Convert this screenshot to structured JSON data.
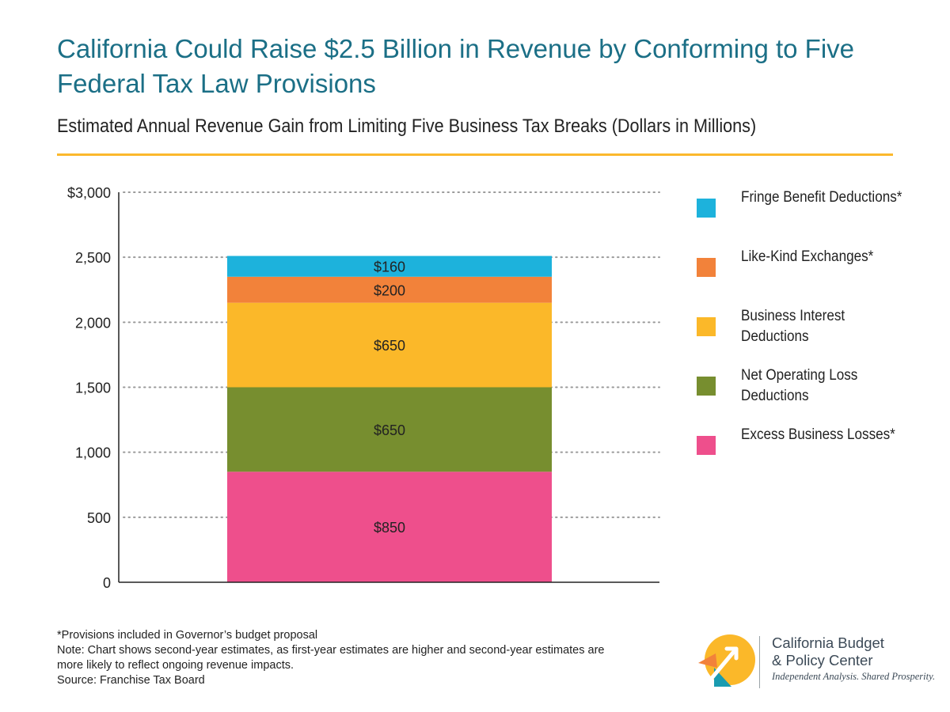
{
  "header": {
    "title": "California Could Raise $2.5 Billion in Revenue by Conforming to Five Federal Tax Law Provisions",
    "subtitle": "Estimated Annual Revenue Gain from Limiting Five Business Tax Breaks (Dollars in Millions)"
  },
  "chart_data": {
    "type": "bar",
    "stacked": true,
    "categories": [
      ""
    ],
    "series": [
      {
        "name": "Excess Business Losses*",
        "values": [
          850
        ],
        "label": "$850",
        "color": "#ee4f8c"
      },
      {
        "name": "Net Operating Loss Deductions",
        "values": [
          650
        ],
        "label": "$650",
        "color": "#778e2f"
      },
      {
        "name": "Business Interest Deductions",
        "values": [
          650
        ],
        "label": "$650",
        "color": "#fbb829"
      },
      {
        "name": "Like-Kind Exchanges*",
        "values": [
          200
        ],
        "label": "$200",
        "color": "#f2823a"
      },
      {
        "name": "Fringe Benefit Deductions*",
        "values": [
          160
        ],
        "label": "$160",
        "color": "#1db2dc"
      }
    ],
    "ylim": [
      0,
      3000
    ],
    "yticks": [
      {
        "value": 0,
        "label": "0"
      },
      {
        "value": 500,
        "label": "500"
      },
      {
        "value": 1000,
        "label": "1,000"
      },
      {
        "value": 1500,
        "label": "1,500"
      },
      {
        "value": 2000,
        "label": "2,000"
      },
      {
        "value": 2500,
        "label": "2,500"
      },
      {
        "value": 3000,
        "label": "$3,000"
      }
    ],
    "grid": true,
    "legend_position": "right"
  },
  "legend": {
    "items": [
      {
        "label": "Fringe Benefit Deductions*",
        "color": "#1db2dc"
      },
      {
        "label": "Like-Kind Exchanges*",
        "color": "#f2823a"
      },
      {
        "label": "Business Interest Deductions",
        "color": "#fbb829"
      },
      {
        "label": "Net Operating Loss Deductions",
        "color": "#778e2f"
      },
      {
        "label": "Excess Business Losses*",
        "color": "#ee4f8c"
      }
    ]
  },
  "notes": {
    "provisions": "*Provisions included in Governor’s budget proposal",
    "note": "Note: Chart shows second-year estimates, as first-year estimates are higher and second-year estimates are more likely to reflect ongoing revenue impacts.",
    "source": "Source: Franchise Tax Board"
  },
  "logo": {
    "name_line1": "California Budget",
    "name_line2": "& Policy Center",
    "tagline": "Independent Analysis. Shared Prosperity.",
    "colors": {
      "yellow": "#fbb829",
      "orange": "#f2823a",
      "teal": "#1a9bb0"
    }
  }
}
